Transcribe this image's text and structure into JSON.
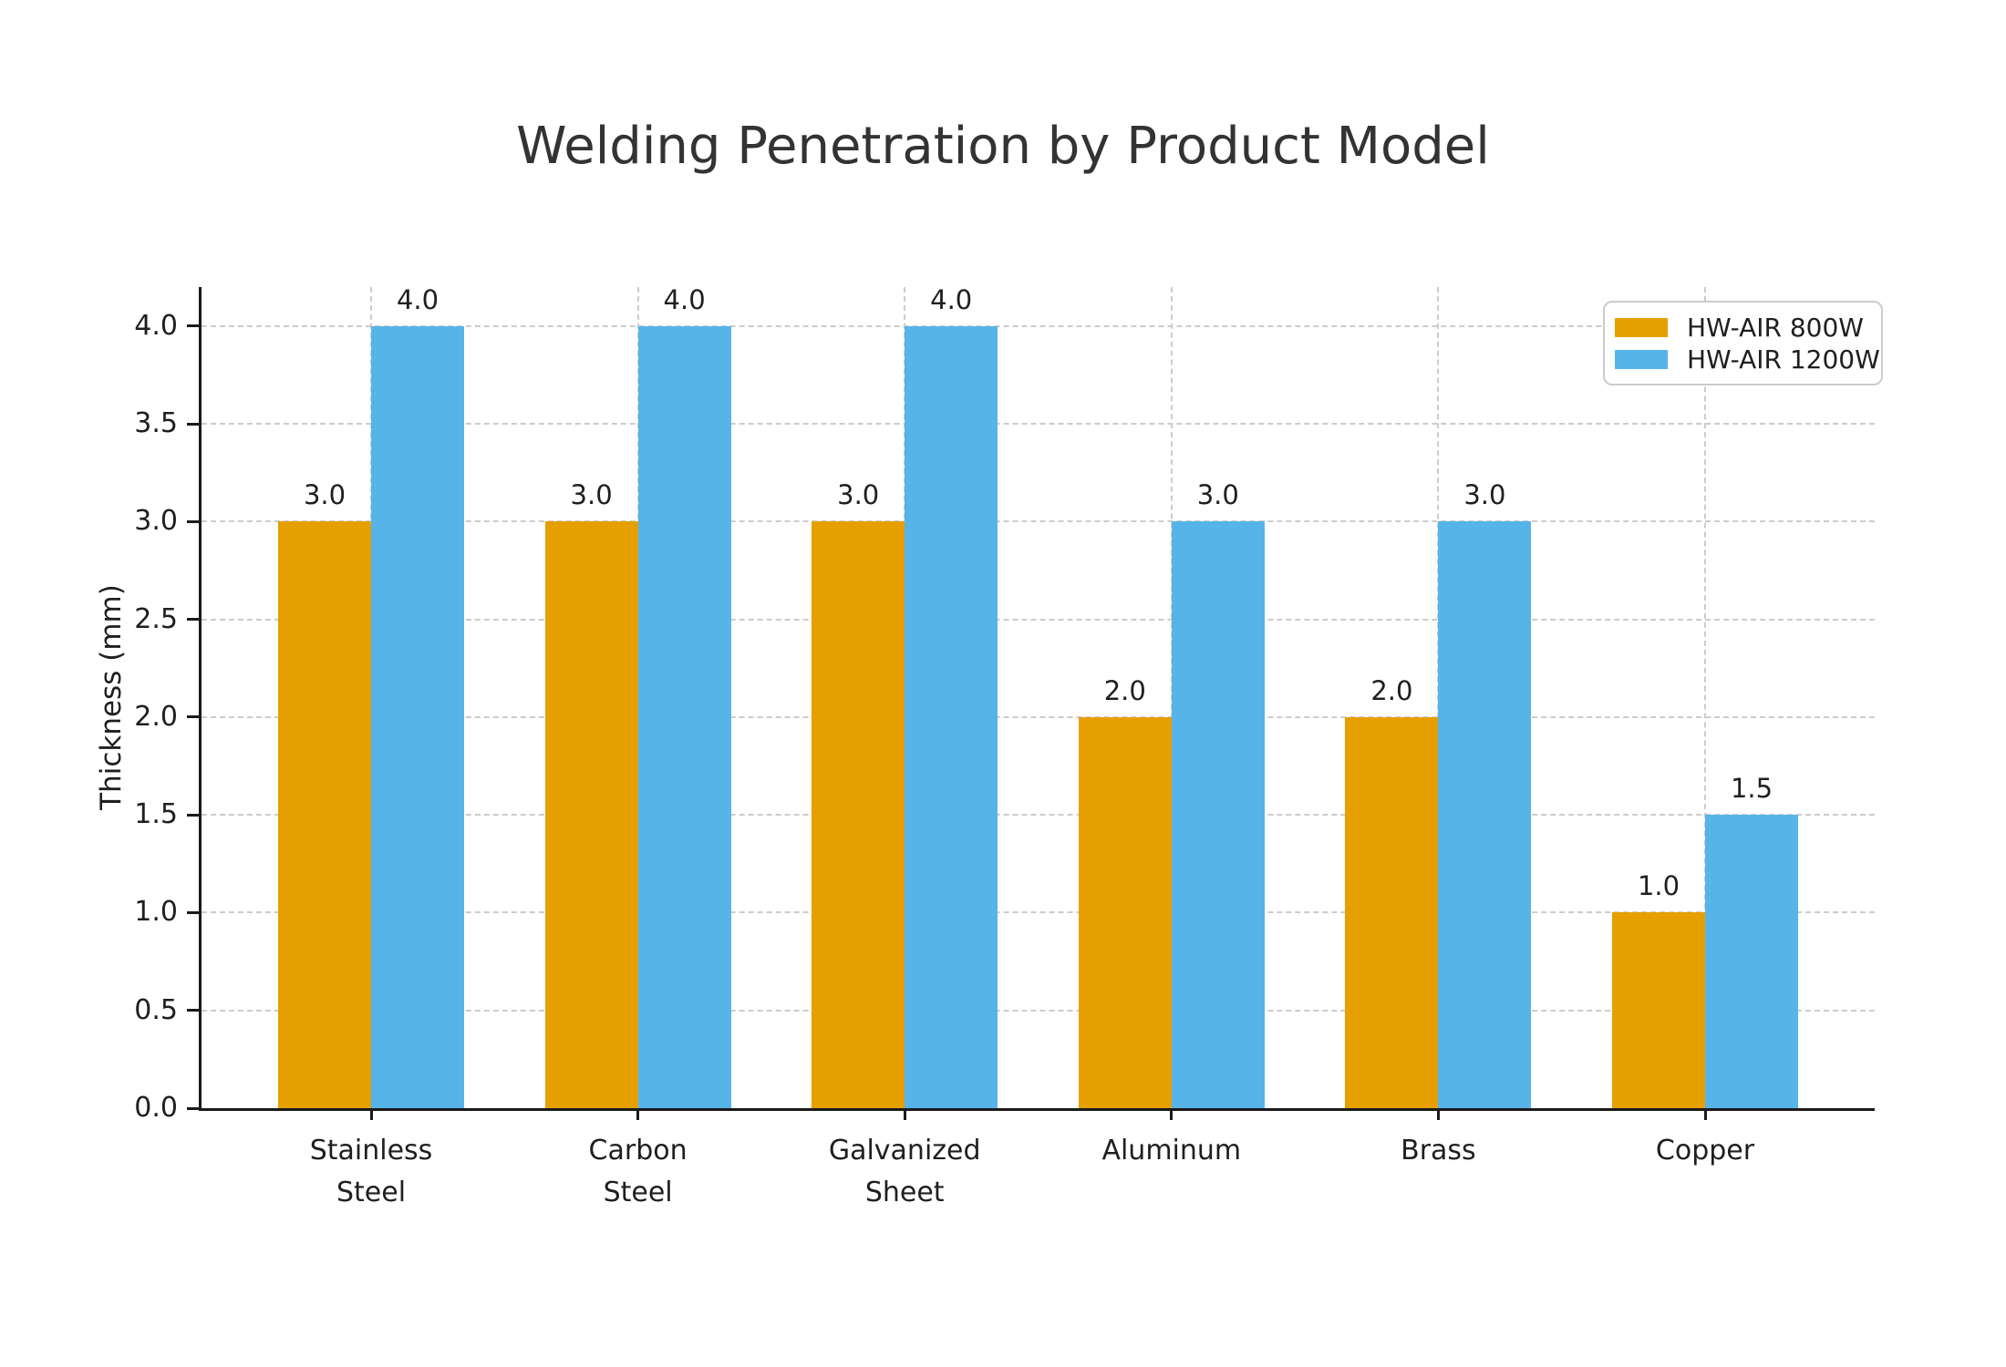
{
  "chart_data": {
    "type": "bar",
    "title": "Welding Penetration by Product Model",
    "ylabel": "Thickness (mm)",
    "xlabel": "",
    "categories": [
      "Stainless\nSteel",
      "Carbon\nSteel",
      "Galvanized\nSheet",
      "Aluminum",
      "Brass",
      "Copper"
    ],
    "series": [
      {
        "name": "HW-AIR 800W",
        "color": "#E69F00",
        "values": [
          3.0,
          3.0,
          3.0,
          2.0,
          2.0,
          1.0
        ]
      },
      {
        "name": "HW-AIR 1200W",
        "color": "#56B4E9",
        "values": [
          4.0,
          4.0,
          4.0,
          3.0,
          3.0,
          1.5
        ]
      }
    ],
    "ylim": [
      0,
      4.2
    ],
    "yticks": [
      0.0,
      0.5,
      1.0,
      1.5,
      2.0,
      2.5,
      3.0,
      3.5,
      4.0
    ],
    "value_label_decimals": 1,
    "grid": {
      "horizontal": true,
      "vertical": true,
      "style": "dashed",
      "color": "#cccccc"
    },
    "legend_position": "upper right",
    "text_color": "#1f1f1f",
    "spine_color": "#1a1a1a"
  }
}
